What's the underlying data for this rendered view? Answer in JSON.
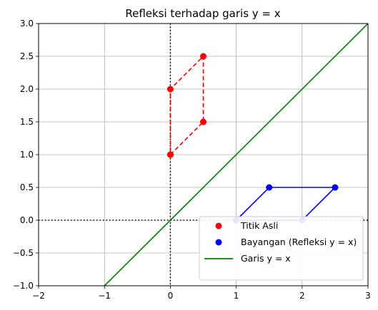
{
  "chart_data": {
    "type": "line",
    "title": "Refleksi terhadap garis y = x",
    "xlabel": "",
    "ylabel": "",
    "xlim": [
      -2,
      3
    ],
    "ylim": [
      -1,
      3
    ],
    "x_ticks": [
      -2,
      -1,
      0,
      1,
      2,
      3
    ],
    "y_ticks": [
      -1,
      -0.5,
      0,
      0.5,
      1,
      1.5,
      2,
      2.5,
      3
    ],
    "x_tick_labels": [
      "−2",
      "−1",
      "0",
      "1",
      "2",
      "3"
    ],
    "y_tick_labels": [
      "−1.0",
      "−0.5",
      "0.0",
      "0.5",
      "1.0",
      "1.5",
      "2.0",
      "2.5",
      "3.0"
    ],
    "grid": true,
    "legend_position": "lower-right",
    "series": [
      {
        "name": "Titik Asli",
        "color": "#ff0000",
        "style": "dashed-with-markers",
        "points": [
          [
            0,
            1
          ],
          [
            0.5,
            1.5
          ],
          [
            0.5,
            2.5
          ],
          [
            0,
            2
          ],
          [
            0,
            1
          ]
        ]
      },
      {
        "name": "Bayangan (Refleksi y = x)",
        "color": "#0000ff",
        "style": "solid-with-markers",
        "points": [
          [
            1,
            0
          ],
          [
            1.5,
            0.5
          ],
          [
            2.5,
            0.5
          ],
          [
            2,
            0
          ],
          [
            1,
            0
          ]
        ]
      },
      {
        "name": "Garis y = x",
        "color": "#008000",
        "style": "solid",
        "points": [
          [
            -1,
            -1
          ],
          [
            3,
            3
          ]
        ]
      }
    ],
    "reference_lines": [
      {
        "orientation": "horizontal",
        "value": 0,
        "color": "#000000",
        "style": "dotted"
      },
      {
        "orientation": "vertical",
        "value": 0,
        "color": "#000000",
        "style": "dotted"
      }
    ]
  }
}
